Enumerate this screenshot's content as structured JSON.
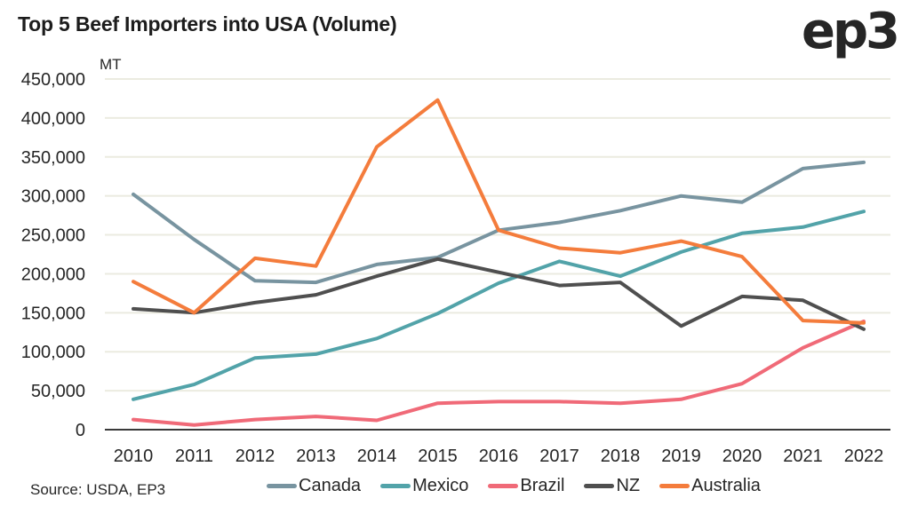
{
  "logo": "ep3",
  "source": "Source: USDA, EP3",
  "chart_data": {
    "type": "line",
    "title": "Top 5 Beef Importers into USA (Volume)",
    "xlabel": "",
    "ylabel": "MT",
    "ylim": [
      0,
      450000
    ],
    "yticks": [
      0,
      50000,
      100000,
      150000,
      200000,
      250000,
      300000,
      350000,
      400000,
      450000
    ],
    "ytick_labels": [
      "0",
      "50,000",
      "100,000",
      "150,000",
      "200,000",
      "250,000",
      "300,000",
      "350,000",
      "400,000",
      "450,000"
    ],
    "grid": true,
    "legend_position": "bottom",
    "x": [
      "2010",
      "2011",
      "2012",
      "2013",
      "2014",
      "2015",
      "2016",
      "2017",
      "2018",
      "2019",
      "2020",
      "2021",
      "2022"
    ],
    "series": [
      {
        "name": "Canada",
        "color": "#7894a0",
        "values": [
          302000,
          244000,
          191000,
          189000,
          212000,
          221000,
          256000,
          266000,
          281000,
          300000,
          292000,
          335000,
          343000
        ]
      },
      {
        "name": "Mexico",
        "color": "#52a3a9",
        "values": [
          39000,
          58000,
          92000,
          97000,
          117000,
          149000,
          188000,
          216000,
          197000,
          228000,
          252000,
          260000,
          280000
        ]
      },
      {
        "name": "Brazil",
        "color": "#f06a78",
        "values": [
          13000,
          6000,
          13000,
          17000,
          12000,
          34000,
          36000,
          36000,
          34000,
          39000,
          59000,
          105000,
          139000
        ]
      },
      {
        "name": "NZ",
        "color": "#4f4f4f",
        "values": [
          155000,
          150000,
          163000,
          173000,
          197000,
          219000,
          202000,
          185000,
          189000,
          133000,
          171000,
          166000,
          129000
        ]
      },
      {
        "name": "Australia",
        "color": "#f47c3c",
        "values": [
          190000,
          150000,
          220000,
          210000,
          363000,
          423000,
          256000,
          233000,
          227000,
          242000,
          222000,
          140000,
          137000
        ]
      }
    ]
  }
}
